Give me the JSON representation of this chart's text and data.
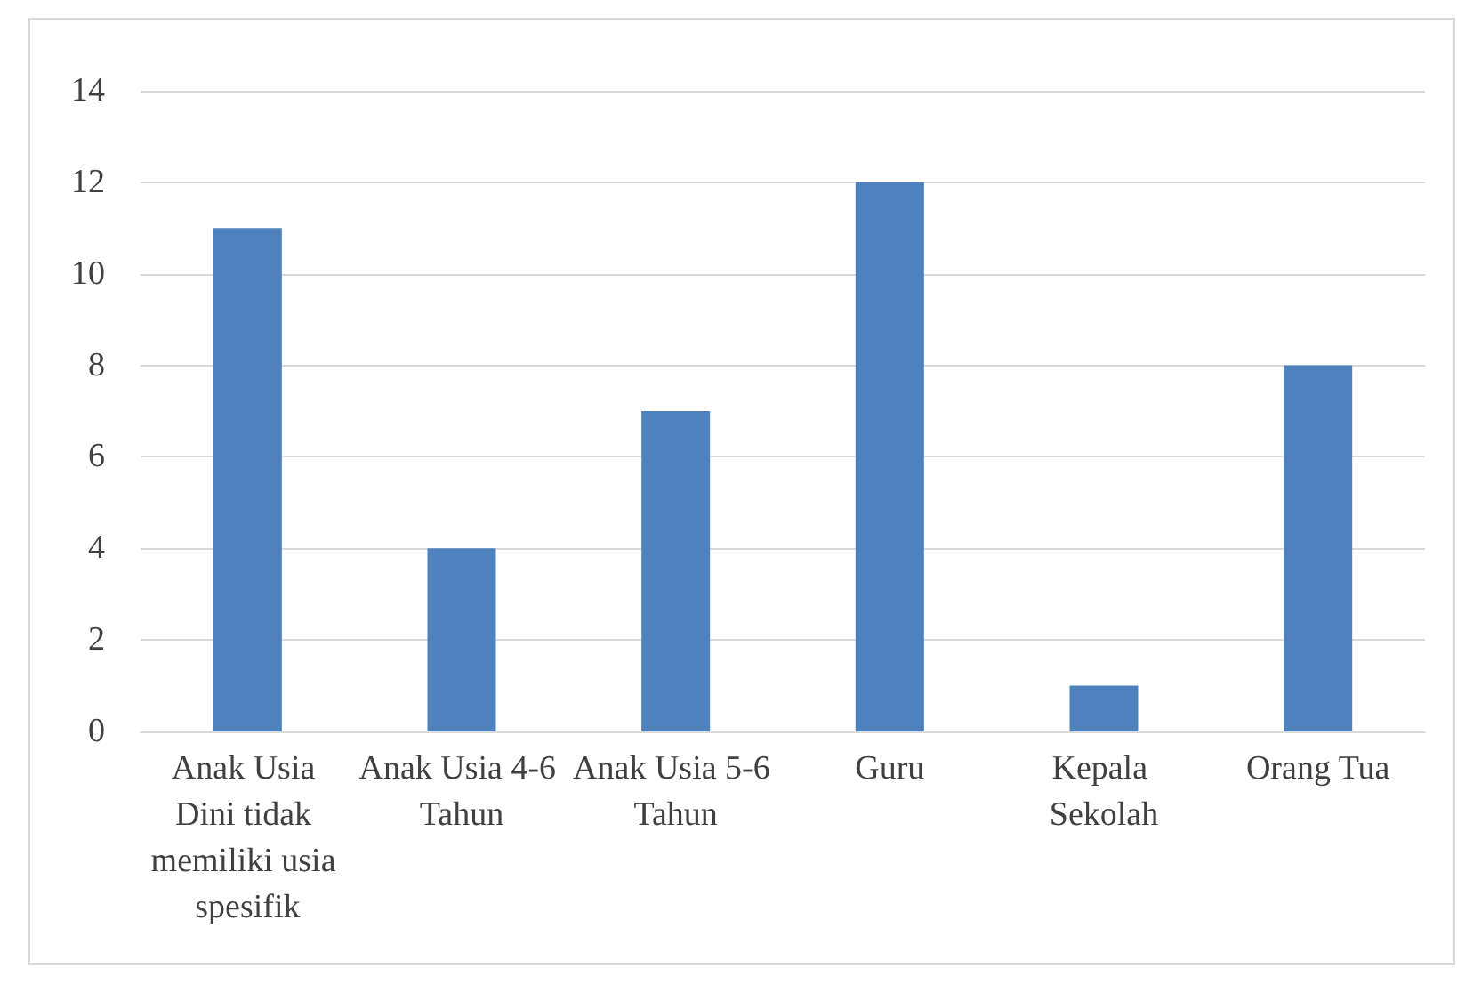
{
  "chart_data": {
    "type": "bar",
    "categories": [
      "Anak Usia Dini tidak memiliki usia spesifik",
      "Anak Usia 4-6 Tahun",
      "Anak Usia 5-6 Tahun",
      "Guru",
      "Kepala Sekolah",
      "Orang Tua"
    ],
    "values": [
      11,
      4,
      7,
      12,
      1,
      8
    ],
    "color": "#4f81bd",
    "ylim": [
      0,
      14
    ],
    "yticks": [
      0,
      2,
      4,
      6,
      8,
      10,
      12,
      14
    ],
    "grid": "y"
  }
}
